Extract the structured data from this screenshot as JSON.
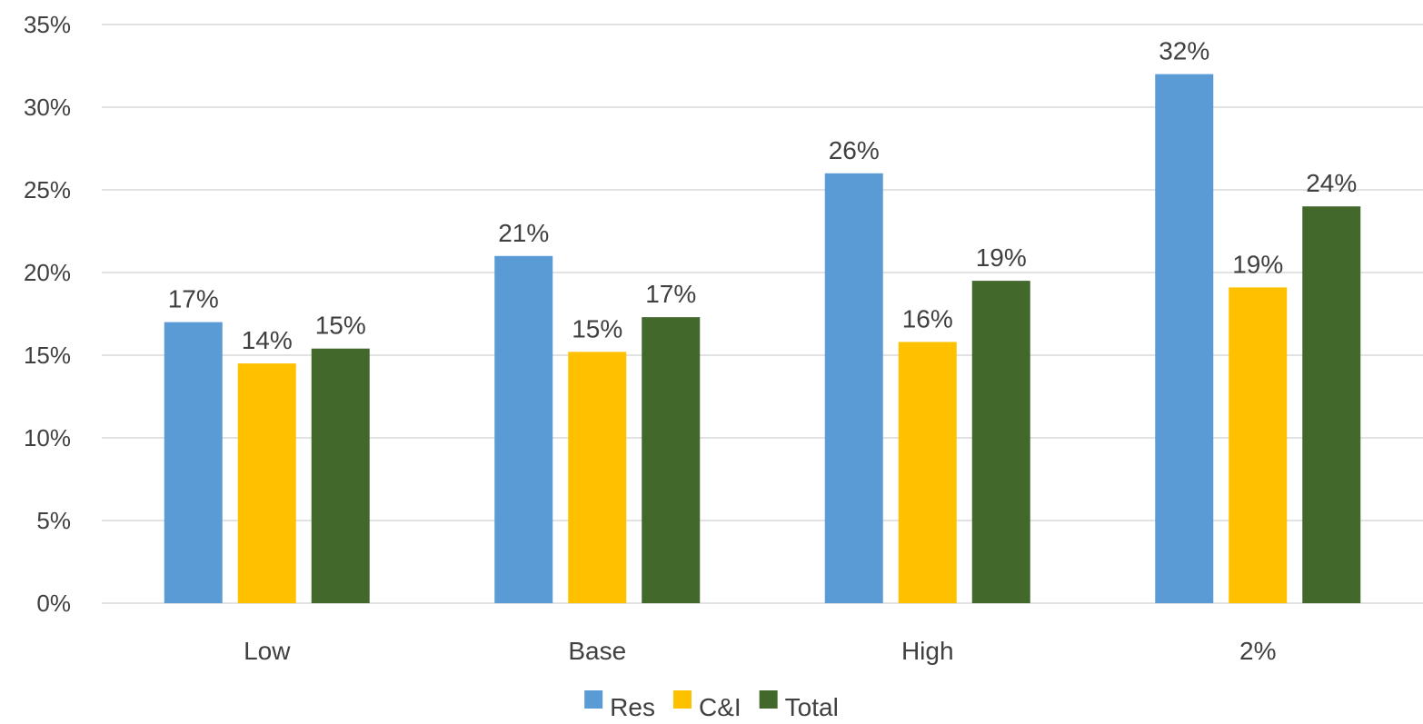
{
  "chart_data": {
    "type": "bar",
    "title": "",
    "xlabel": "",
    "ylabel": "",
    "categories": [
      "Low",
      "Base",
      "High",
      "2%"
    ],
    "series": [
      {
        "name": "Res",
        "color": "#5B9BD5",
        "values": [
          17,
          21,
          26,
          32
        ],
        "labels": [
          "17%",
          "21%",
          "26%",
          "32%"
        ]
      },
      {
        "name": "C&I",
        "color": "#FFC000",
        "values": [
          14.5,
          15.2,
          15.8,
          19.1
        ],
        "labels": [
          "14%",
          "15%",
          "16%",
          "19%"
        ]
      },
      {
        "name": "Total",
        "color": "#43682B",
        "values": [
          15.4,
          17.3,
          19.5,
          24
        ],
        "labels": [
          "15%",
          "17%",
          "19%",
          "24%"
        ]
      }
    ],
    "ylim": [
      0,
      35
    ],
    "yticks": [
      0,
      5,
      10,
      15,
      20,
      25,
      30,
      35
    ],
    "ytick_labels": [
      "0%",
      "5%",
      "10%",
      "15%",
      "20%",
      "25%",
      "30%",
      "35%"
    ],
    "grid": true,
    "gridline_color": "#D9D9D9",
    "legend_position": "bottom"
  }
}
